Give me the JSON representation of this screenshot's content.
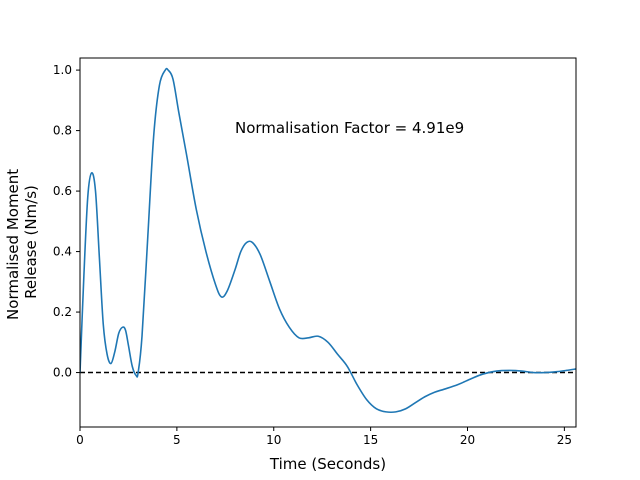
{
  "chart_data": {
    "type": "line",
    "title": "",
    "xlabel": "Time (Seconds)",
    "ylabel_lines": [
      "Normalised Moment",
      "Release (Nm/s)"
    ],
    "annotation": "Normalisation Factor = 4.91e9",
    "xlim": [
      0,
      25.6
    ],
    "ylim": [
      -0.18,
      1.04
    ],
    "xticks": [
      0,
      5,
      10,
      15,
      20,
      25
    ],
    "xtick_labels": [
      "0",
      "5",
      "10",
      "15",
      "20",
      "25"
    ],
    "yticks": [
      0.0,
      0.2,
      0.4,
      0.6,
      0.8,
      1.0
    ],
    "ytick_labels": [
      "0.0",
      "0.2",
      "0.4",
      "0.6",
      "0.8",
      "1.0"
    ],
    "grid": false,
    "reference_line": {
      "y": 0.0,
      "style": "dashed",
      "color": "#000000"
    },
    "series": [
      {
        "color": "#1f77b4",
        "x": [
          0,
          0.2,
          0.4,
          0.6,
          0.8,
          1.0,
          1.2,
          1.4,
          1.6,
          1.8,
          2.0,
          2.2,
          2.35,
          2.5,
          2.7,
          2.9,
          3.0,
          3.2,
          3.5,
          3.8,
          4.1,
          4.4,
          4.55,
          4.8,
          5.1,
          5.5,
          6.0,
          6.5,
          7.0,
          7.3,
          7.6,
          8.0,
          8.3,
          8.6,
          8.9,
          9.3,
          9.8,
          10.3,
          10.8,
          11.3,
          11.8,
          12.3,
          12.8,
          13.3,
          13.8,
          14.3,
          14.8,
          15.3,
          15.8,
          16.3,
          16.8,
          17.3,
          17.8,
          18.3,
          18.8,
          19.5,
          20.2,
          20.8,
          21.5,
          22.2,
          22.8,
          23.4,
          24.0,
          24.6,
          25.1,
          25.6
        ],
        "y": [
          0.0,
          0.32,
          0.58,
          0.66,
          0.6,
          0.38,
          0.16,
          0.06,
          0.03,
          0.07,
          0.13,
          0.15,
          0.14,
          0.09,
          0.02,
          -0.01,
          0.0,
          0.12,
          0.45,
          0.78,
          0.95,
          1.0,
          1.0,
          0.97,
          0.86,
          0.72,
          0.54,
          0.4,
          0.29,
          0.25,
          0.27,
          0.34,
          0.4,
          0.43,
          0.43,
          0.39,
          0.3,
          0.21,
          0.15,
          0.115,
          0.115,
          0.12,
          0.1,
          0.06,
          0.02,
          -0.04,
          -0.09,
          -0.12,
          -0.13,
          -0.13,
          -0.12,
          -0.1,
          -0.08,
          -0.065,
          -0.055,
          -0.04,
          -0.02,
          -0.005,
          0.005,
          0.007,
          0.005,
          0.0,
          0.0,
          0.003,
          0.007,
          0.012
        ]
      }
    ]
  }
}
